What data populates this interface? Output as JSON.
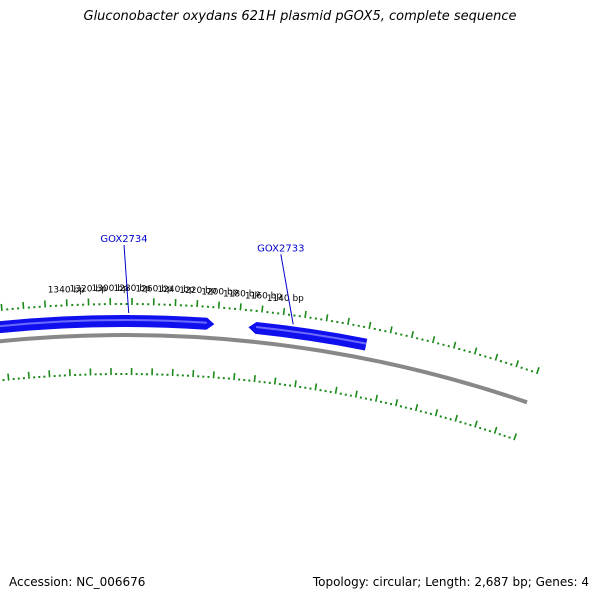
{
  "title": "Gluconobacter oxydans 621H plasmid pGOX5, complete sequence",
  "footer": {
    "accession": "Accession: NC_006676",
    "summary": "Topology: circular; Length: 2,687 bp; Genes: 4"
  },
  "colors": {
    "gene": "#1010ee",
    "gene_highlight": "#6a6aff",
    "backbone": "#888888",
    "ticks": "#1a8a1a",
    "gene_label": "#0000cc",
    "tick_label": "#000000"
  },
  "tick_labels": [
    "1140 bp",
    "1160 bp",
    "1180 bp",
    "1200 bp",
    "1220 bp",
    "1240 bp",
    "1260 bp",
    "1280 bp",
    "1300 bp",
    "1320 bp",
    "1340 bp"
  ],
  "genes": [
    {
      "name": "GOX2733",
      "start_bp": 1171,
      "end_bp": 1060,
      "strand": "reverse"
    },
    {
      "name": "GOX2734",
      "start_bp": 1203,
      "end_bp": 1520,
      "strand": "forward"
    }
  ]
}
